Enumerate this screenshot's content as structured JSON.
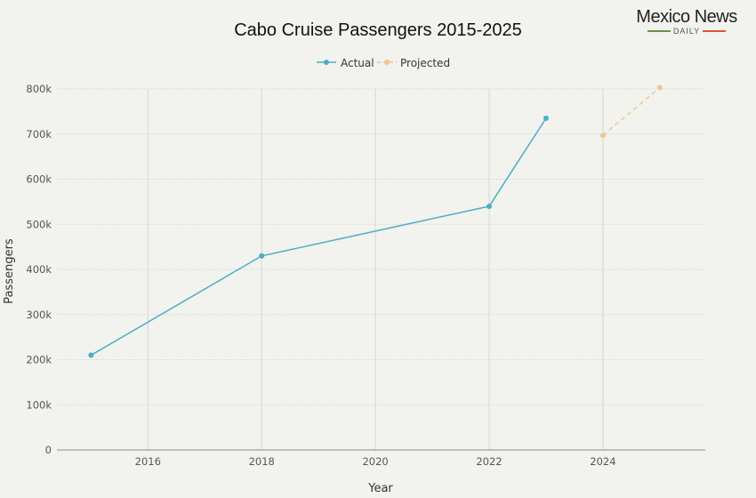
{
  "logo": {
    "name": "Mexico News",
    "sub": "DAILY",
    "line_left_color": "#6b8f4e",
    "line_right_color": "#d9553f"
  },
  "chart_data": {
    "type": "line",
    "title": "Cabo Cruise Passengers 2015-2025",
    "xlabel": "Year",
    "ylabel": "Passengers",
    "xlim": [
      2014.4,
      2025.8
    ],
    "ylim": [
      0,
      800000
    ],
    "x_ticks": [
      2016,
      2018,
      2020,
      2022,
      2024
    ],
    "x_tick_labels": [
      "2016",
      "2018",
      "2020",
      "2022",
      "2024"
    ],
    "y_ticks": [
      0,
      100000,
      200000,
      300000,
      400000,
      500000,
      600000,
      700000,
      800000
    ],
    "y_tick_labels": [
      "0",
      "100k",
      "200k",
      "300k",
      "400k",
      "500k",
      "600k",
      "700k",
      "800k"
    ],
    "grid": true,
    "legend_position": "top-center",
    "series": [
      {
        "name": "Actual",
        "color": "#4aaec4",
        "dashed": false,
        "x": [
          2015,
          2018,
          2022,
          2023
        ],
        "y": [
          210000,
          430000,
          540000,
          735000
        ]
      },
      {
        "name": "Projected",
        "color": "#f3c48d",
        "dashed": true,
        "x": [
          2024,
          2025
        ],
        "y": [
          697000,
          803000
        ]
      }
    ]
  }
}
